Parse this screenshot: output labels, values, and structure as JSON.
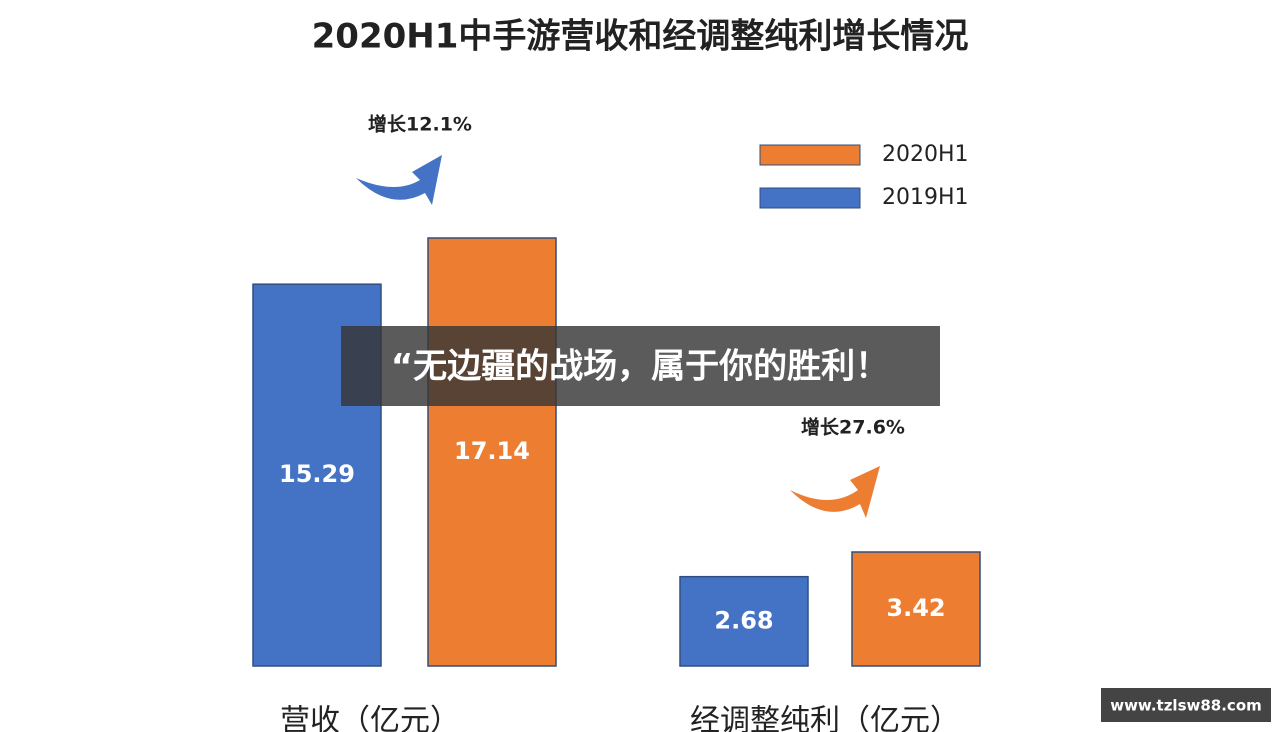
{
  "chart_data": {
    "type": "bar",
    "title": "2020H1中手游营收和经调整纯利增长情况",
    "categories": [
      "营收（亿元）",
      "经调整纯利（亿元）"
    ],
    "series": [
      {
        "name": "2020H1",
        "color": "#ed7d31",
        "values": [
          17.14,
          3.42
        ]
      },
      {
        "name": "2019H1",
        "color": "#4472c4",
        "values": [
          15.29,
          2.68
        ]
      }
    ],
    "annotations": [
      "增长12.1%",
      "增长27.6%"
    ]
  },
  "overlay": {
    "banner": "“无边疆的战场，属于你的胜利！",
    "watermark": "www.tzlsw88.com"
  }
}
